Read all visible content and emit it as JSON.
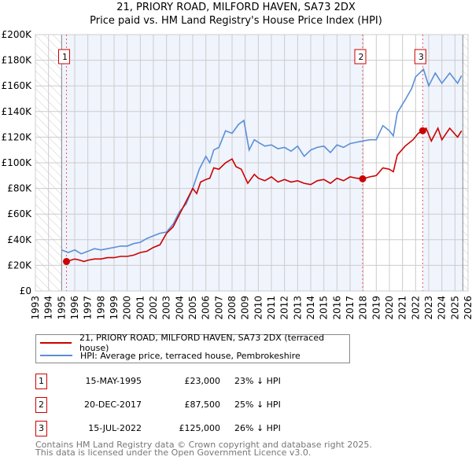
{
  "title_line1": "21, PRIORY ROAD, MILFORD HAVEN, SA73 2DX",
  "title_line2": "Price paid vs. HM Land Registry's House Price Index (HPI)",
  "chart_data": {
    "type": "line",
    "title": "21, PRIORY ROAD, MILFORD HAVEN, SA73 2DX — Price paid vs. HM Land Registry's House Price Index (HPI)",
    "xlim": [
      1993,
      2026
    ],
    "ylim": [
      0,
      200000
    ],
    "x_ticks": [
      "1993",
      "1994",
      "1995",
      "1996",
      "1997",
      "1998",
      "1999",
      "2000",
      "2001",
      "2002",
      "2003",
      "2004",
      "2005",
      "2006",
      "2007",
      "2008",
      "2009",
      "2010",
      "2011",
      "2012",
      "2013",
      "2014",
      "2015",
      "2016",
      "2017",
      "2018",
      "2019",
      "2020",
      "2021",
      "2022",
      "2023",
      "2024",
      "2025",
      "2026"
    ],
    "y_ticks": [
      {
        "v": 0,
        "label": "£0"
      },
      {
        "v": 20000,
        "label": "£20K"
      },
      {
        "v": 40000,
        "label": "£40K"
      },
      {
        "v": 60000,
        "label": "£60K"
      },
      {
        "v": 80000,
        "label": "£80K"
      },
      {
        "v": 100000,
        "label": "£100K"
      },
      {
        "v": 120000,
        "label": "£120K"
      },
      {
        "v": 140000,
        "label": "£140K"
      },
      {
        "v": 160000,
        "label": "£160K"
      },
      {
        "v": 180000,
        "label": "£180K"
      },
      {
        "v": 200000,
        "label": "£200K"
      }
    ],
    "grid": true,
    "data_range": [
      1995,
      2025.6
    ],
    "series": [
      {
        "name": "21, PRIORY ROAD, MILFORD HAVEN, SA73 2DX (terraced house)",
        "color": "#cc0000",
        "x": [
          1995.37,
          1995.7,
          1996,
          1996.4,
          1996.7,
          1997,
          1997.5,
          1998,
          1998.5,
          1999,
          1999.5,
          2000,
          2000.5,
          2001,
          2001.5,
          2002,
          2002.5,
          2003,
          2003.5,
          2004,
          2004.5,
          2005,
          2005.3,
          2005.6,
          2006,
          2006.3,
          2006.6,
          2007,
          2007.5,
          2008,
          2008.3,
          2008.7,
          2009.2,
          2009.7,
          2010,
          2010.5,
          2011,
          2011.5,
          2012,
          2012.5,
          2013,
          2013.5,
          2014,
          2014.5,
          2015,
          2015.5,
          2016,
          2016.5,
          2017,
          2017.5,
          2017.96,
          2018.5,
          2019,
          2019.5,
          2020,
          2020.3,
          2020.6,
          2021.2,
          2021.8,
          2022.2,
          2022.54,
          2022.8,
          2023.2,
          2023.7,
          2024,
          2024.6,
          2025.2,
          2025.5
        ],
        "y": [
          23000,
          24000,
          25000,
          24000,
          23000,
          24000,
          25000,
          25000,
          26000,
          26000,
          27000,
          27000,
          28000,
          30000,
          31000,
          34000,
          36000,
          45000,
          50000,
          60000,
          70000,
          80000,
          76000,
          85000,
          87000,
          88000,
          96000,
          95000,
          100000,
          103000,
          97000,
          95000,
          84000,
          91000,
          88000,
          86000,
          89000,
          85000,
          87000,
          85000,
          86000,
          84000,
          83000,
          86000,
          87000,
          84000,
          88000,
          86000,
          89000,
          88000,
          87500,
          89000,
          90000,
          96000,
          95000,
          93000,
          106000,
          113000,
          118000,
          123000,
          125000,
          127000,
          117000,
          127000,
          118000,
          127000,
          120000,
          125000
        ]
      },
      {
        "name": "HPI: Average price, terraced house, Pembrokeshire",
        "color": "#5b8fd6",
        "x": [
          1995,
          1995.5,
          1996,
          1996.5,
          1997,
          1997.5,
          1998,
          1998.5,
          1999,
          1999.5,
          2000,
          2000.5,
          2001,
          2001.5,
          2002,
          2002.5,
          2003,
          2003.5,
          2004,
          2004.5,
          2005,
          2005.5,
          2006,
          2006.3,
          2006.6,
          2007,
          2007.5,
          2008,
          2008.5,
          2008.9,
          2009.3,
          2009.7,
          2010,
          2010.5,
          2011,
          2011.5,
          2012,
          2012.5,
          2013,
          2013.5,
          2014,
          2014.5,
          2015,
          2015.5,
          2016,
          2016.5,
          2017,
          2017.5,
          2017.96,
          2018.5,
          2019,
          2019.5,
          2020,
          2020.3,
          2020.6,
          2021.2,
          2021.7,
          2022,
          2022.6,
          2023,
          2023.5,
          2024,
          2024.6,
          2025.2,
          2025.5
        ],
        "y": [
          32000,
          30000,
          32000,
          29000,
          31000,
          33000,
          32000,
          33000,
          34000,
          35000,
          35000,
          37000,
          38000,
          41000,
          43000,
          45000,
          46000,
          52000,
          62000,
          68000,
          80000,
          95000,
          105000,
          100000,
          110000,
          112000,
          125000,
          123000,
          130000,
          133000,
          110000,
          118000,
          116000,
          113000,
          114000,
          111000,
          112000,
          109000,
          113000,
          105000,
          110000,
          112000,
          113000,
          108000,
          114000,
          112000,
          115000,
          116000,
          117000,
          118000,
          118000,
          129000,
          125000,
          121000,
          139000,
          149000,
          158000,
          167000,
          173000,
          160000,
          170000,
          162000,
          170000,
          162000,
          168000
        ]
      }
    ],
    "sales": [
      {
        "label": "1",
        "x": 1995.37,
        "y": 23000
      },
      {
        "label": "2",
        "x": 2017.96,
        "y": 87500
      },
      {
        "label": "3",
        "x": 2022.54,
        "y": 125000
      }
    ],
    "legend_placement": "below"
  },
  "legend": {
    "items": [
      {
        "label": "21, PRIORY ROAD, MILFORD HAVEN, SA73 2DX (terraced house)",
        "color": "#cc0000"
      },
      {
        "label": "HPI: Average price, terraced house, Pembrokeshire",
        "color": "#5b8fd6"
      }
    ]
  },
  "sales_table": [
    {
      "num": "1",
      "date": "15-MAY-1995",
      "price": "£23,000",
      "hpi": "23% ↓ HPI"
    },
    {
      "num": "2",
      "date": "20-DEC-2017",
      "price": "£87,500",
      "hpi": "25% ↓ HPI"
    },
    {
      "num": "3",
      "date": "15-JUL-2022",
      "price": "£125,000",
      "hpi": "26% ↓ HPI"
    }
  ],
  "footer": {
    "line1": "Contains HM Land Registry data © Crown copyright and database right 2025.",
    "line2": "This data is licensed under the Open Government Licence v3.0."
  }
}
